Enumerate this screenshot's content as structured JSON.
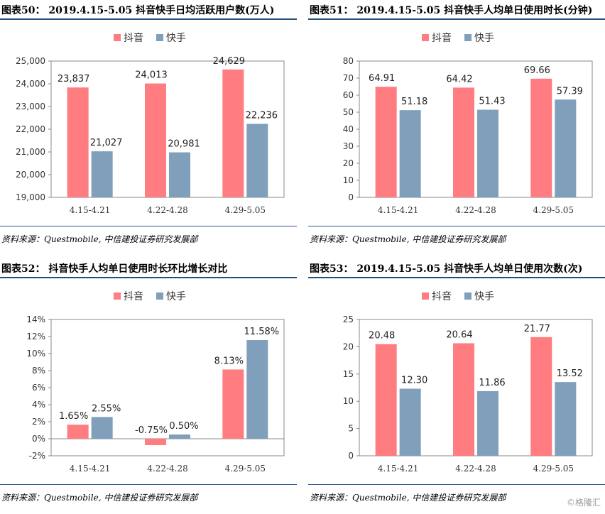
{
  "panels": [
    {
      "title": "图表50： 2019.4.15-5.05 抖音快手日均活跃用户数(万人)",
      "source": "资料来源：Questmobile, 中信建投证券研究发展部"
    },
    {
      "title": "图表51： 2019.4.15-5.05 抖音快手人均单日使用时长(分钟)",
      "source": "资料来源：Questmobile, 中信建投证券研究发展部"
    },
    {
      "title": "图表52： 抖音快手人均单日使用时长环比增长对比",
      "source": "资料来源：Questmobile, 中信建投证券研究发展部"
    },
    {
      "title": "图表53： 2019.4.15-5.05 抖音快手人均单日使用次数(次)",
      "source": "资料来源：Questmobile, 中信建投证券研究发展部"
    }
  ],
  "watermark": "©格隆汇",
  "colors": {
    "douyin": "#ff7c80",
    "kuaishou": "#7f9fba",
    "rule": "#1f4e79"
  },
  "chart_data": [
    {
      "type": "bar",
      "categories": [
        "4.15-4.21",
        "4.22-4.28",
        "4.29-5.05"
      ],
      "series": [
        {
          "name": "抖音",
          "values": [
            23837,
            24013,
            24629
          ],
          "labels": [
            "23,837",
            "24,013",
            "24,629"
          ]
        },
        {
          "name": "快手",
          "values": [
            21027,
            20981,
            22236
          ],
          "labels": [
            "21,027",
            "20,981",
            "22,236"
          ]
        }
      ],
      "ylim": [
        19000,
        25000
      ],
      "yticks": [
        19000,
        20000,
        21000,
        22000,
        23000,
        24000,
        25000
      ],
      "ytick_labels": [
        "19,000",
        "20,000",
        "21,000",
        "22,000",
        "23,000",
        "24,000",
        "25,000"
      ],
      "legend": "top-center",
      "grid": false
    },
    {
      "type": "bar",
      "categories": [
        "4.15-4.21",
        "4.22-4.28",
        "4.29-5.05"
      ],
      "series": [
        {
          "name": "抖音",
          "values": [
            64.91,
            64.42,
            69.66
          ],
          "labels": [
            "64.91",
            "64.42",
            "69.66"
          ]
        },
        {
          "name": "快手",
          "values": [
            51.18,
            51.43,
            57.39
          ],
          "labels": [
            "51.18",
            "51.43",
            "57.39"
          ]
        }
      ],
      "ylim": [
        0,
        80
      ],
      "yticks": [
        0,
        10,
        20,
        30,
        40,
        50,
        60,
        70,
        80
      ],
      "ytick_labels": [
        "0",
        "10",
        "20",
        "30",
        "40",
        "50",
        "60",
        "70",
        "80"
      ],
      "legend": "top-center",
      "grid": false
    },
    {
      "type": "bar",
      "categories": [
        "4.15-4.21",
        "4.22-4.28",
        "4.29-5.05"
      ],
      "series": [
        {
          "name": "抖音",
          "values": [
            1.65,
            -0.75,
            8.13
          ],
          "labels": [
            "1.65%",
            "-0.75%",
            "8.13%"
          ]
        },
        {
          "name": "快手",
          "values": [
            2.55,
            0.5,
            11.58
          ],
          "labels": [
            "2.55%",
            "0.50%",
            "11.58%"
          ]
        }
      ],
      "ylim": [
        -2,
        14
      ],
      "yticks": [
        -2,
        0,
        2,
        4,
        6,
        8,
        10,
        12,
        14
      ],
      "ytick_labels": [
        "-2%",
        "0%",
        "2%",
        "4%",
        "6%",
        "8%",
        "10%",
        "12%",
        "14%"
      ],
      "legend": "top-center",
      "grid": false
    },
    {
      "type": "bar",
      "categories": [
        "4.15-4.21",
        "4.22-4.28",
        "4.29-5.05"
      ],
      "series": [
        {
          "name": "抖音",
          "values": [
            20.48,
            20.64,
            21.77
          ],
          "labels": [
            "20.48",
            "20.64",
            "21.77"
          ]
        },
        {
          "name": "快手",
          "values": [
            12.3,
            11.86,
            13.52
          ],
          "labels": [
            "12.30",
            "11.86",
            "13.52"
          ]
        }
      ],
      "ylim": [
        0,
        25
      ],
      "yticks": [
        0,
        5,
        10,
        15,
        20,
        25
      ],
      "ytick_labels": [
        "0",
        "5",
        "10",
        "15",
        "20",
        "25"
      ],
      "legend": "top-center",
      "grid": false
    }
  ]
}
